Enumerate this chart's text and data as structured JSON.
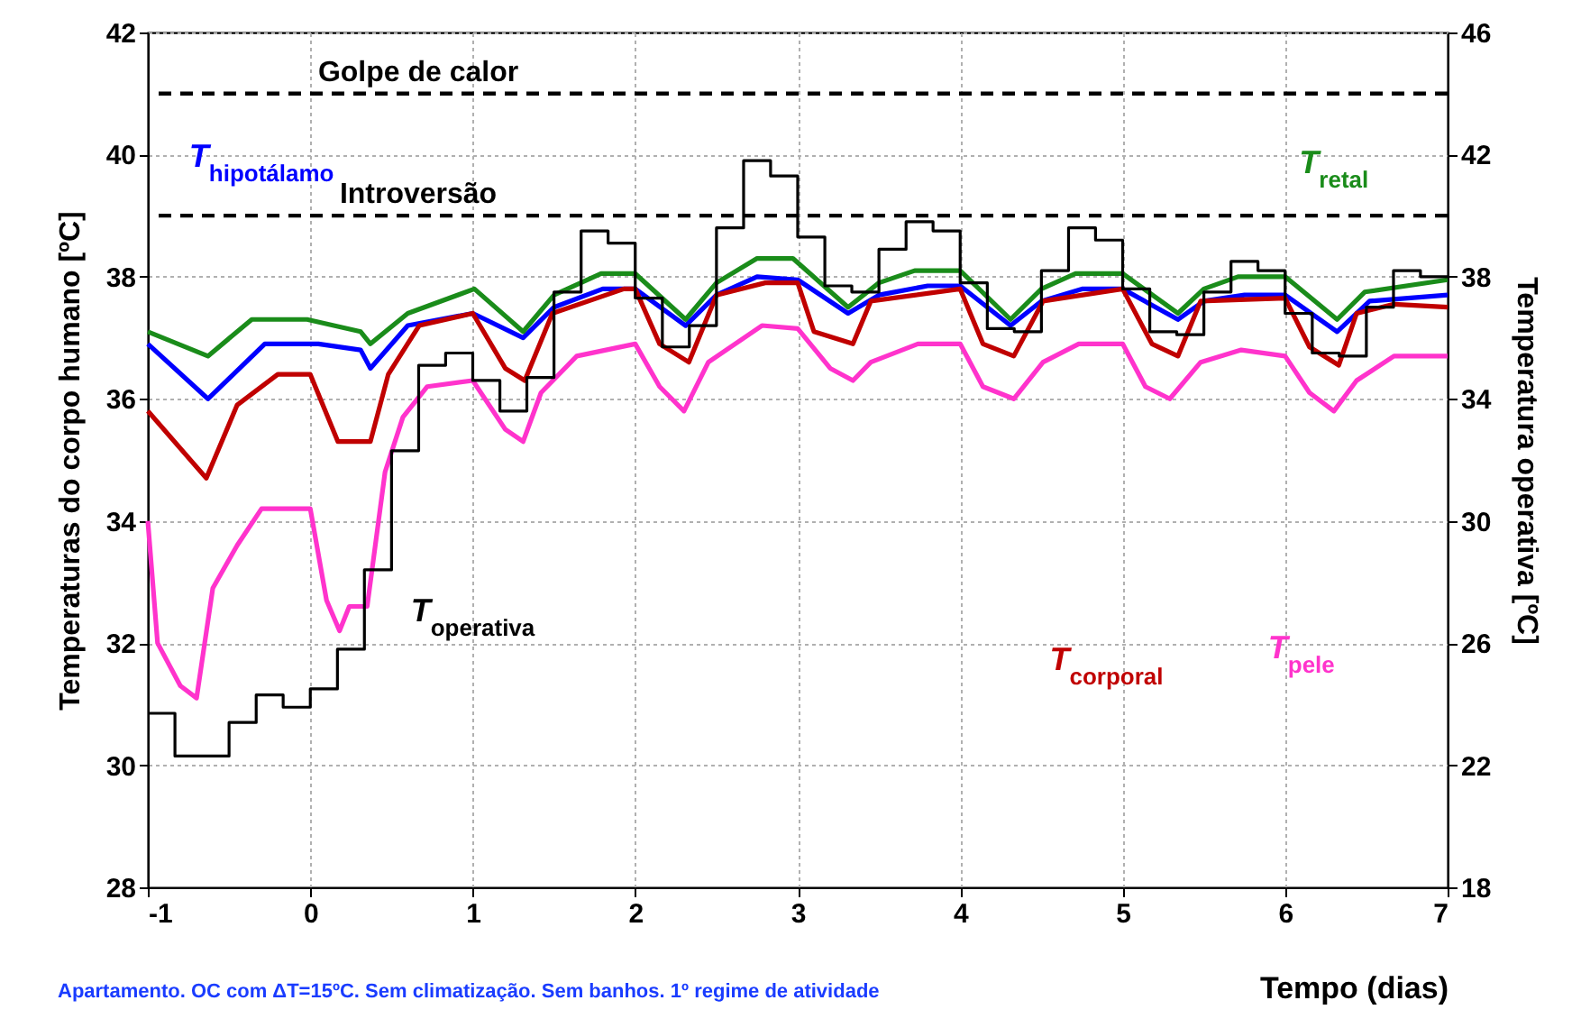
{
  "chart_data": {
    "type": "line",
    "xlabel": "Tempo (dias)",
    "ylabel": "Temperaturas do corpo humano [ºC]",
    "y2label": "Temperatura operativa [ºC]",
    "xlim": [
      -1,
      7
    ],
    "xticks": [
      -1,
      0,
      1,
      2,
      3,
      4,
      5,
      6,
      7
    ],
    "ylim": [
      28,
      42
    ],
    "yticks": [
      28,
      30,
      32,
      34,
      36,
      38,
      40,
      42
    ],
    "y2lim": [
      18,
      46
    ],
    "y2ticks": [
      18,
      22,
      26,
      30,
      34,
      38,
      42,
      46
    ],
    "grid": true,
    "legend": false,
    "marker": "none",
    "ref_lines": [
      {
        "axis": "y",
        "value": 41,
        "label": "Golpe de calor",
        "line_style": "dashed"
      },
      {
        "axis": "y",
        "value": 39,
        "label": "Introversão",
        "line_style": "dashed"
      }
    ],
    "annotations": [
      "Apartamento. OC com ΔT=15ºC. Sem climatização. Sem banhos. 1º regime de atividade"
    ],
    "series": [
      {
        "name": "T$_{hipotálamo}$",
        "color": "#0000ff",
        "x": [
          -1,
          -0.63,
          -0.28,
          0.05,
          0.31,
          0.37,
          0.6,
          1.0,
          1.31,
          1.5,
          1.8,
          2.0,
          2.31,
          2.5,
          2.75,
          3.0,
          3.31,
          3.5,
          3.8,
          4.0,
          4.31,
          4.5,
          4.75,
          5.0,
          5.34,
          5.5,
          5.75,
          6.0,
          6.32,
          6.52,
          7.0
        ],
        "values": [
          36.9,
          36.0,
          36.9,
          36.9,
          36.8,
          36.5,
          37.2,
          37.4,
          37.0,
          37.5,
          37.8,
          37.8,
          37.2,
          37.7,
          38.0,
          37.95,
          37.4,
          37.7,
          37.85,
          37.85,
          37.2,
          37.6,
          37.8,
          37.8,
          37.3,
          37.6,
          37.7,
          37.7,
          37.1,
          37.6,
          37.7
        ]
      },
      {
        "name": "T$_{retal}$",
        "color": "#1a8c1a",
        "x": [
          -1,
          -0.63,
          -0.36,
          -0.02,
          0.31,
          0.37,
          0.6,
          1.01,
          1.31,
          1.5,
          1.79,
          2.0,
          2.31,
          2.5,
          2.75,
          2.97,
          3.31,
          3.5,
          3.72,
          4.0,
          4.31,
          4.5,
          4.71,
          5.0,
          5.34,
          5.5,
          5.71,
          6.0,
          6.32,
          6.49,
          7.0
        ],
        "values": [
          37.1,
          36.7,
          37.3,
          37.3,
          37.1,
          36.9,
          37.4,
          37.8,
          37.1,
          37.7,
          38.05,
          38.05,
          37.3,
          37.9,
          38.3,
          38.3,
          37.5,
          37.9,
          38.1,
          38.1,
          37.3,
          37.8,
          38.05,
          38.05,
          37.4,
          37.8,
          38.0,
          38.0,
          37.3,
          37.75,
          37.95
        ]
      },
      {
        "name": "T$_{corporal}$",
        "color": "#c00000",
        "x": [
          -1,
          -0.64,
          -0.45,
          -0.2,
          0.0,
          0.17,
          0.37,
          0.48,
          0.67,
          1.0,
          1.2,
          1.32,
          1.49,
          1.93,
          2.0,
          2.15,
          2.33,
          2.5,
          2.8,
          3.0,
          3.1,
          3.34,
          3.45,
          4.0,
          4.14,
          4.33,
          4.51,
          5.0,
          5.18,
          5.34,
          5.48,
          6.0,
          6.15,
          6.33,
          6.44,
          6.67,
          7.0
        ],
        "values": [
          35.8,
          34.7,
          35.9,
          36.4,
          36.4,
          35.3,
          35.3,
          36.4,
          37.2,
          37.4,
          36.5,
          36.3,
          37.4,
          37.8,
          37.8,
          36.9,
          36.6,
          37.7,
          37.9,
          37.9,
          37.1,
          36.9,
          37.6,
          37.8,
          36.9,
          36.7,
          37.6,
          37.8,
          36.9,
          36.7,
          37.6,
          37.65,
          36.85,
          36.55,
          37.4,
          37.55,
          37.5
        ]
      },
      {
        "name": "T$_{pele}$",
        "color": "#ff33cc",
        "x": [
          -1,
          -0.94,
          -0.8,
          -0.7,
          -0.6,
          -0.45,
          -0.3,
          0.0,
          0.1,
          0.18,
          0.24,
          0.35,
          0.46,
          0.57,
          0.72,
          1.0,
          1.2,
          1.31,
          1.42,
          1.64,
          2.0,
          2.15,
          2.3,
          2.45,
          2.78,
          3.0,
          3.2,
          3.34,
          3.45,
          3.74,
          4.0,
          4.14,
          4.33,
          4.51,
          4.73,
          5.0,
          5.14,
          5.29,
          5.48,
          5.73,
          6.0,
          6.15,
          6.3,
          6.44,
          6.67,
          7.0
        ],
        "values": [
          34.0,
          32.0,
          31.3,
          31.1,
          32.9,
          33.6,
          34.2,
          34.2,
          32.7,
          32.2,
          32.6,
          32.6,
          34.8,
          35.7,
          36.2,
          36.3,
          35.5,
          35.3,
          36.1,
          36.7,
          36.9,
          36.2,
          35.8,
          36.6,
          37.2,
          37.15,
          36.5,
          36.3,
          36.6,
          36.9,
          36.9,
          36.2,
          36.0,
          36.6,
          36.9,
          36.9,
          36.2,
          36.0,
          36.6,
          36.8,
          36.7,
          36.1,
          35.8,
          36.3,
          36.7,
          36.7
        ]
      },
      {
        "name": "T$_{operativa}$",
        "color": "#000000",
        "type": "step",
        "axis": "y2",
        "x": [
          -1,
          -0.833,
          -0.667,
          -0.5,
          -0.333,
          -0.167,
          0,
          0.167,
          0.333,
          0.5,
          0.667,
          0.833,
          1,
          1.167,
          1.333,
          1.5,
          1.667,
          1.833,
          2,
          2.167,
          2.333,
          2.5,
          2.667,
          2.833,
          3,
          3.167,
          3.333,
          3.5,
          3.667,
          3.833,
          4,
          4.167,
          4.333,
          4.5,
          4.667,
          4.833,
          5,
          5.167,
          5.333,
          5.5,
          5.667,
          5.833,
          6,
          6.167,
          6.333,
          6.5,
          6.667,
          6.833,
          7
        ],
        "values": [
          23.7,
          22.3,
          22.3,
          23.4,
          24.3,
          23.9,
          24.5,
          25.8,
          28.4,
          32.3,
          35.1,
          35.5,
          34.6,
          33.6,
          34.7,
          37.5,
          39.5,
          39.1,
          37.3,
          35.7,
          36.4,
          39.6,
          41.8,
          41.3,
          39.3,
          37.7,
          37.5,
          38.9,
          39.8,
          39.5,
          37.8,
          36.3,
          36.2,
          38.2,
          39.6,
          39.2,
          37.6,
          36.2,
          36.1,
          37.5,
          38.5,
          38.2,
          36.8,
          35.5,
          35.4,
          37.0,
          38.2,
          38.0,
          38.0
        ]
      }
    ]
  }
}
